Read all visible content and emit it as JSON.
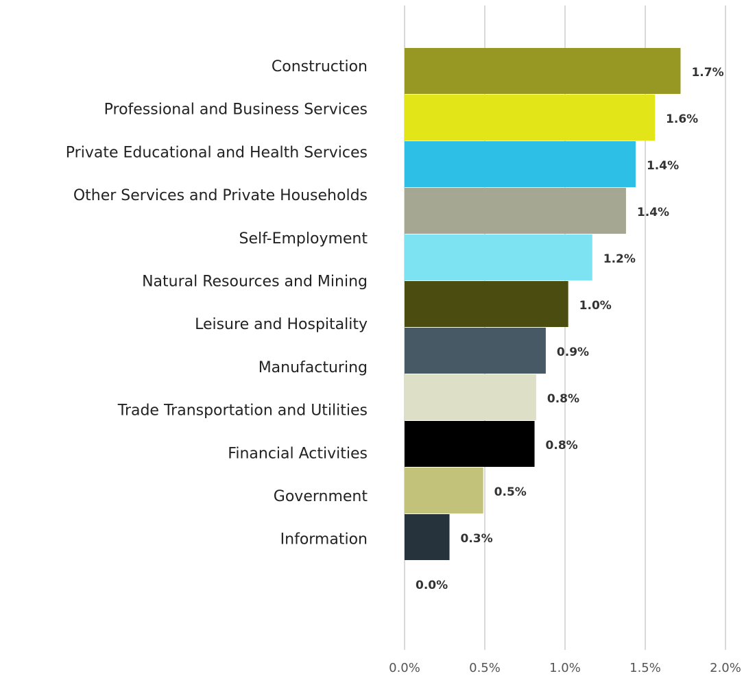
{
  "chart_data": {
    "type": "bar",
    "orientation": "horizontal",
    "categories": [
      "Construction",
      "Professional and Business Services",
      "Private Educational and Health Services",
      "Other Services and Private Households",
      "Self-Employment",
      "Natural Resources and Mining",
      "Leisure and Hospitality",
      "Manufacturing",
      "Trade Transportation and Utilities",
      "Financial Activities",
      "Government",
      "Information"
    ],
    "values": [
      1.72,
      1.56,
      1.44,
      1.38,
      1.17,
      1.02,
      0.88,
      0.82,
      0.81,
      0.49,
      0.28,
      0
    ],
    "value_labels": [
      "1.7%",
      "1.6%",
      "1.4%",
      "1.4%",
      "1.2%",
      "1.0%",
      "0.9%",
      "0.8%",
      "0.8%",
      "0.5%",
      "0.3%",
      "0.0%"
    ],
    "colors": [
      "#979823",
      "#e2e619",
      "#2ebfe7",
      "#a5a792",
      "#7de3f3",
      "#4b4c10",
      "#485966",
      "#dddfc6",
      "#000000",
      "#c2c27b",
      "#27333c",
      "#27333c"
    ],
    "xlim": [
      0,
      2
    ],
    "xticks": [
      {
        "value": 0,
        "label": "0.0%"
      },
      {
        "value": 0.5,
        "label": "0.5%"
      },
      {
        "value": 1,
        "label": "1.0%"
      },
      {
        "value": 1.5,
        "label": "1.5%"
      },
      {
        "value": 2,
        "label": "2.0%"
      }
    ],
    "grid": true
  }
}
